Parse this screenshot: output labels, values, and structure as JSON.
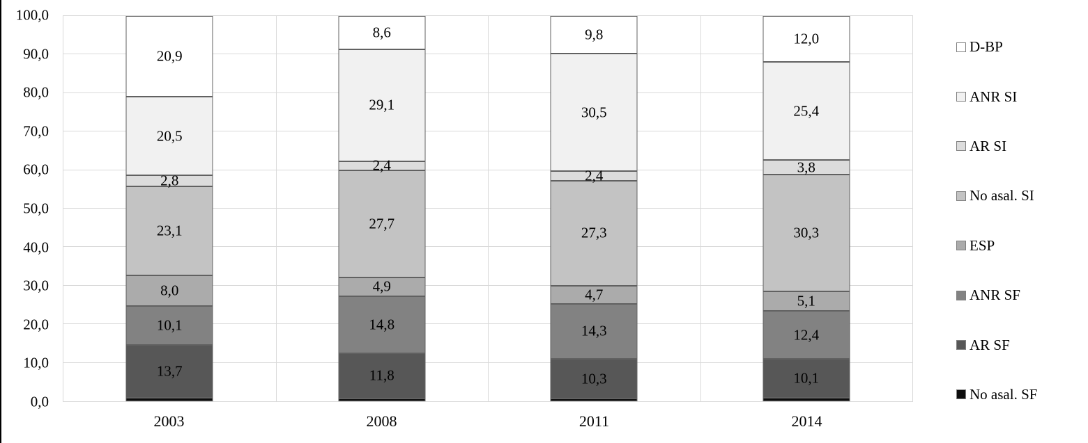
{
  "figure": {
    "background": "#ffffff",
    "left_border_color": "#000000",
    "gridline_color": "#d9d9d9",
    "segment_border_color": "#616161"
  },
  "chart_data": {
    "type": "bar",
    "stacked": true,
    "orientation": "vertical",
    "title": "",
    "xlabel": "",
    "ylabel": "",
    "categories": [
      "2003",
      "2008",
      "2011",
      "2014"
    ],
    "series": [
      {
        "name": "D-BP",
        "color": "#ffffff",
        "values": [
          20.9,
          8.6,
          9.8,
          12.0
        ],
        "labels": [
          "20,9",
          "8,6",
          "9,8",
          "12,0"
        ]
      },
      {
        "name": "ANR SI",
        "color": "#f1f1f1",
        "values": [
          20.5,
          29.1,
          30.5,
          25.4
        ],
        "labels": [
          "20,5",
          "29,1",
          "30,5",
          "25,4"
        ]
      },
      {
        "name": "AR SI",
        "color": "#dcdcdc",
        "values": [
          2.8,
          2.4,
          2.4,
          3.8
        ],
        "labels": [
          "2,8",
          "2,4",
          "2,4",
          "3,8"
        ]
      },
      {
        "name": "No asal. SI",
        "color": "#c3c3c3",
        "values": [
          23.1,
          27.7,
          27.3,
          30.3
        ],
        "labels": [
          "23,1",
          "27,7",
          "27,3",
          "30,3"
        ]
      },
      {
        "name": "ESP",
        "color": "#ababab",
        "values": [
          8.0,
          4.9,
          4.7,
          5.1
        ],
        "labels": [
          "8,0",
          "4,9",
          "4,7",
          "5,1"
        ]
      },
      {
        "name": "ANR SF",
        "color": "#828282",
        "values": [
          10.1,
          14.8,
          14.3,
          12.4
        ],
        "labels": [
          "10,1",
          "14,8",
          "14,3",
          "12,4"
        ]
      },
      {
        "name": "AR SF",
        "color": "#575757",
        "values": [
          13.7,
          11.8,
          10.3,
          10.1
        ],
        "labels": [
          "13,7",
          "11,8",
          "10,3",
          "10,1"
        ]
      },
      {
        "name": "No asal. SF",
        "color": "#0d0d0d",
        "values": [
          0.9,
          0.7,
          0.7,
          0.9
        ],
        "labels": [
          "",
          "",
          "",
          ""
        ]
      }
    ],
    "ylim": [
      0,
      100
    ],
    "ytick_labels": [
      "0,0",
      "10,0",
      "20,0",
      "30,0",
      "40,0",
      "50,0",
      "60,0",
      "70,0",
      "80,0",
      "90,0",
      "100,0"
    ],
    "grid": true,
    "vertical_gridlines_percent": [
      25,
      50,
      75
    ],
    "legend_position": "right",
    "legend_labels": [
      "D-BP",
      "ANR SI",
      "AR SI",
      "No asal. SI",
      "ESP",
      "ANR SF",
      "AR SF",
      "No asal. SF"
    ]
  }
}
